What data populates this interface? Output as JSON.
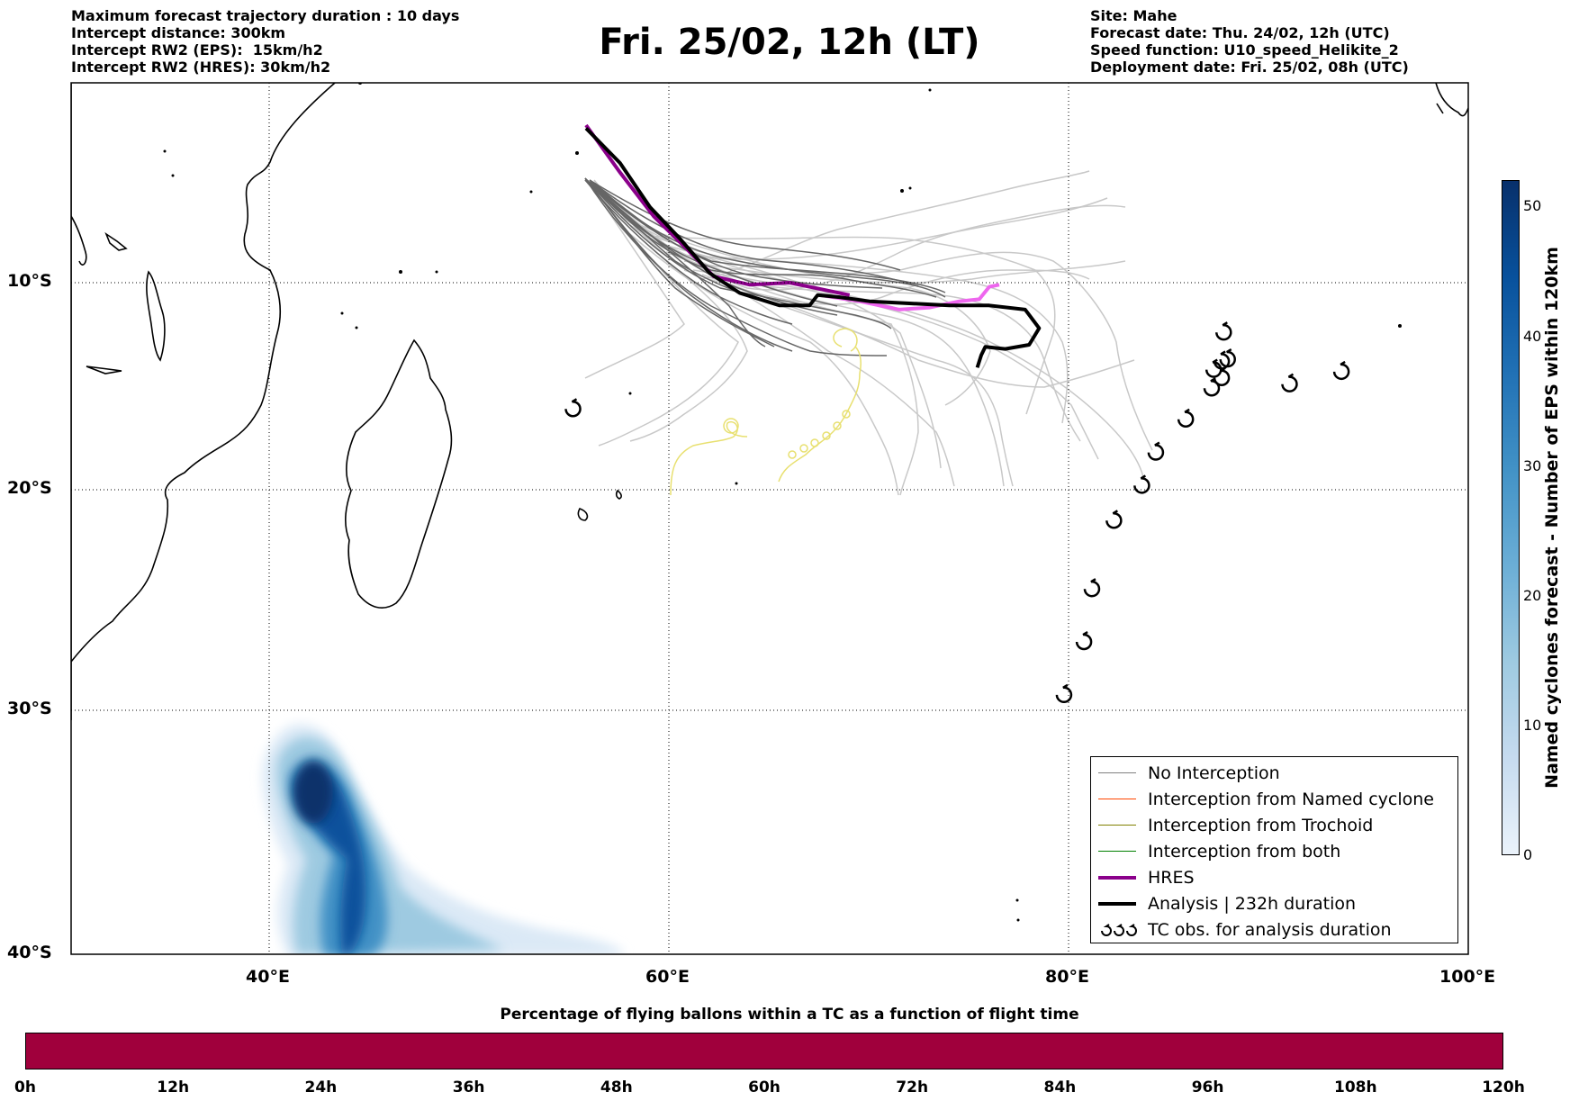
{
  "header_left": {
    "line1": "Maximum forecast trajectory duration : 10 days",
    "line2": "Intercept distance: 300km",
    "line3": "Intercept RW2 (EPS):  15km/h2",
    "line4": "Intercept RW2 (HRES): 30km/h2"
  },
  "header_right": {
    "line1": "Site: Mahe",
    "line2": "Forecast date: Thu. 24/02, 12h (UTC)",
    "line3": "Speed function: U10_speed_Helikite_2",
    "line4": "Deployment date: Fri. 25/02, 08h (UTC)"
  },
  "title": "Fri. 25/02, 12h (LT)",
  "map": {
    "lon_range": [
      30,
      100
    ],
    "lat_range": [
      -40,
      0
    ],
    "lat_labels": [
      "10°S",
      "20°S",
      "30°S",
      "40°S"
    ],
    "lon_labels": [
      "40°E",
      "60°E",
      "80°E",
      "100°E"
    ],
    "hres_color": "#8b008b",
    "hres_tail_color": "#ee66ee",
    "analysis_color": "#000000",
    "eps_near_color": "#666666",
    "eps_far_color": "#c8c8c8",
    "trochoid_color": "#e8e070",
    "density_peak_color": "#08306b"
  },
  "legend": {
    "items": [
      {
        "label": "No Interception",
        "color": "#808080"
      },
      {
        "label": "Interception from Named cyclone",
        "color": "#ff4500"
      },
      {
        "label": "Interception from Trochoid",
        "color": "#808000"
      },
      {
        "label": "Interception from both",
        "color": "#008000"
      },
      {
        "label": "HRES",
        "color": "#8b008b"
      },
      {
        "label": "Analysis | 232h duration",
        "color": "#000000"
      },
      {
        "label": "TC obs. for analysis duration",
        "color": "#000000",
        "icon": "cyclone-symbol-icon"
      }
    ]
  },
  "tc_obs_lonlat": [
    [
      55.1,
      -16.1
    ],
    [
      79.7,
      -29.3
    ],
    [
      80.7,
      -26.9
    ],
    [
      81.1,
      -24.5
    ],
    [
      82.2,
      -21.4
    ],
    [
      83.6,
      -19.8
    ],
    [
      84.3,
      -18.2
    ],
    [
      85.8,
      -16.6
    ],
    [
      87.1,
      -15.1
    ],
    [
      87.2,
      -14.2
    ],
    [
      87.6,
      -14.6
    ],
    [
      87.6,
      -13.8
    ],
    [
      87.9,
      -13.7
    ],
    [
      87.7,
      -12.4
    ],
    [
      91.0,
      -14.9
    ],
    [
      93.6,
      -14.3
    ]
  ],
  "analysis_track_lonlat": [
    [
      55.8,
      -5.1
    ],
    [
      57.5,
      -6.2
    ],
    [
      59.0,
      -7.6
    ],
    [
      60.5,
      -8.6
    ],
    [
      62.0,
      -9.7
    ],
    [
      63.5,
      -10.5
    ],
    [
      65.5,
      -11.1
    ],
    [
      67.0,
      -11.1
    ],
    [
      67.4,
      -10.6
    ],
    [
      68.5,
      -10.7
    ],
    [
      70.0,
      -10.9
    ],
    [
      72.0,
      -11.0
    ],
    [
      74.0,
      -11.1
    ],
    [
      76.0,
      -11.1
    ],
    [
      77.8,
      -11.3
    ],
    [
      78.5,
      -12.2
    ],
    [
      78.0,
      -13.0
    ],
    [
      76.8,
      -13.2
    ],
    [
      75.8,
      -13.1
    ],
    [
      75.6,
      -13.5
    ],
    [
      75.4,
      -14.1
    ]
  ],
  "hres_track_lonlat": [
    [
      55.8,
      -5.0
    ],
    [
      57.5,
      -6.5
    ],
    [
      59.2,
      -7.9
    ],
    [
      60.8,
      -8.9
    ],
    [
      62.2,
      -9.8
    ],
    [
      64.0,
      -10.1
    ],
    [
      66.0,
      -10.0
    ],
    [
      68.0,
      -10.4
    ],
    [
      69.0,
      -10.6
    ]
  ],
  "hres_tail_lonlat": [
    [
      67.5,
      -10.6
    ],
    [
      69.5,
      -10.9
    ],
    [
      71.5,
      -11.3
    ],
    [
      73.0,
      -11.2
    ],
    [
      74.5,
      -10.9
    ],
    [
      75.5,
      -10.8
    ],
    [
      76.0,
      -10.2
    ],
    [
      76.5,
      -10.1
    ]
  ],
  "density_colorbar": {
    "ticks": [
      "0",
      "10",
      "20",
      "30",
      "40",
      "50"
    ],
    "label": "Named cyclones forecast - Number of EPS within 120km"
  },
  "time_colorbar": {
    "title": "Percentage of flying ballons within a TC as a function of flight time",
    "ticks": [
      "0h",
      "12h",
      "24h",
      "36h",
      "48h",
      "60h",
      "72h",
      "84h",
      "96h",
      "108h",
      "120h"
    ],
    "fill_color": "#a0003c"
  }
}
